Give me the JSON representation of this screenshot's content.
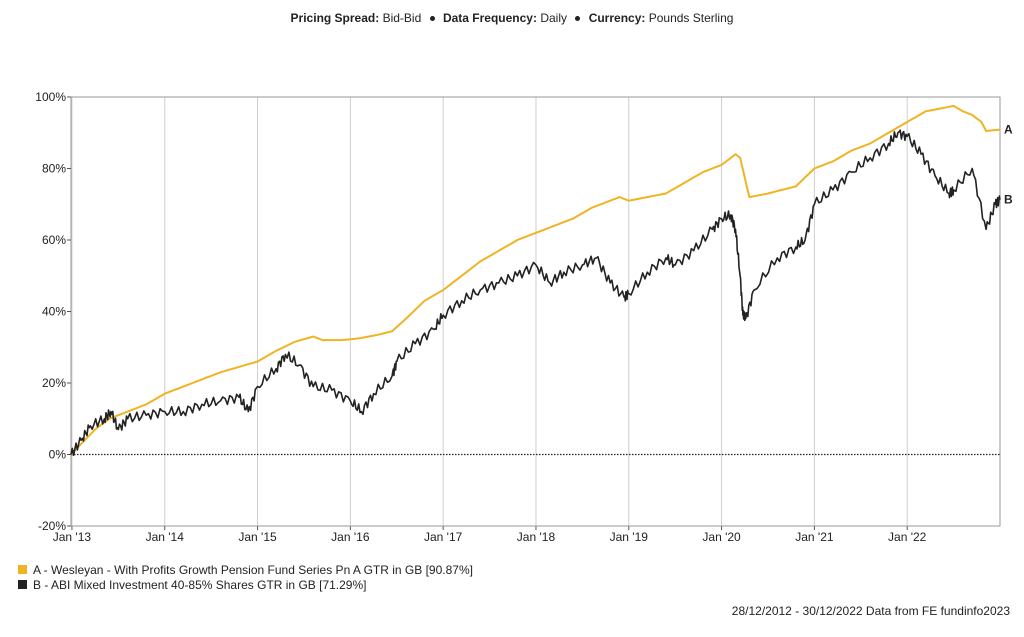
{
  "header": {
    "pricing_key": "Pricing Spread:",
    "pricing_val": "Bid-Bid",
    "freq_key": "Data Frequency:",
    "freq_val": "Daily",
    "currency_key": "Currency:",
    "currency_val": "Pounds Sterling"
  },
  "footer": "28/12/2012 - 30/12/2022 Data from FE fundinfo2023",
  "chart_data": {
    "type": "line",
    "ylim": [
      -20,
      100
    ],
    "yticks": [
      -20,
      0,
      20,
      40,
      60,
      80,
      100
    ],
    "ytick_labels": [
      "-20%",
      "0%",
      "20%",
      "40%",
      "60%",
      "80%",
      "100%"
    ],
    "xlim": [
      2012.99,
      2023.0
    ],
    "xticks": [
      2013,
      2014,
      2015,
      2016,
      2017,
      2018,
      2019,
      2020,
      2021,
      2022
    ],
    "xtick_labels": [
      "Jan '13",
      "Jan '14",
      "Jan '15",
      "Jan '16",
      "Jan '17",
      "Jan '18",
      "Jan '19",
      "Jan '20",
      "Jan '21",
      "Jan '22"
    ],
    "grid": "vertical",
    "legend_position": "bottom-left",
    "series": [
      {
        "name": "A - Wesleyan - With Profits Growth Pension Fund Series Pn A GTR in GB [90.87%]",
        "end_label": "A",
        "color": "#F0B323",
        "points": [
          [
            2012.99,
            0
          ],
          [
            2013.1,
            3
          ],
          [
            2013.25,
            7
          ],
          [
            2013.4,
            10
          ],
          [
            2013.6,
            12
          ],
          [
            2013.8,
            14
          ],
          [
            2014.0,
            17
          ],
          [
            2014.2,
            19
          ],
          [
            2014.4,
            21
          ],
          [
            2014.6,
            23
          ],
          [
            2014.8,
            24.5
          ],
          [
            2015.0,
            26
          ],
          [
            2015.2,
            29
          ],
          [
            2015.4,
            31.5
          ],
          [
            2015.6,
            33
          ],
          [
            2015.7,
            32
          ],
          [
            2015.9,
            32
          ],
          [
            2016.1,
            32.5
          ],
          [
            2016.3,
            33.5
          ],
          [
            2016.45,
            34.5
          ],
          [
            2016.6,
            38
          ],
          [
            2016.8,
            43
          ],
          [
            2017.0,
            46
          ],
          [
            2017.2,
            50
          ],
          [
            2017.4,
            54
          ],
          [
            2017.6,
            57
          ],
          [
            2017.8,
            60
          ],
          [
            2018.0,
            62
          ],
          [
            2018.2,
            64
          ],
          [
            2018.4,
            66
          ],
          [
            2018.6,
            69
          ],
          [
            2018.8,
            71
          ],
          [
            2018.9,
            72
          ],
          [
            2019.0,
            71
          ],
          [
            2019.2,
            72
          ],
          [
            2019.4,
            73
          ],
          [
            2019.6,
            76
          ],
          [
            2019.8,
            79
          ],
          [
            2020.0,
            81
          ],
          [
            2020.1,
            83
          ],
          [
            2020.15,
            84
          ],
          [
            2020.2,
            83
          ],
          [
            2020.28,
            74
          ],
          [
            2020.3,
            72
          ],
          [
            2020.5,
            73
          ],
          [
            2020.8,
            75
          ],
          [
            2021.0,
            80
          ],
          [
            2021.2,
            82
          ],
          [
            2021.4,
            85
          ],
          [
            2021.6,
            87
          ],
          [
            2021.8,
            90
          ],
          [
            2022.0,
            93
          ],
          [
            2022.2,
            96
          ],
          [
            2022.5,
            97.5
          ],
          [
            2022.6,
            96
          ],
          [
            2022.7,
            95
          ],
          [
            2022.8,
            93
          ],
          [
            2022.85,
            90.5
          ],
          [
            2023.0,
            90.87
          ]
        ]
      },
      {
        "name": "B - ABI Mixed Investment 40-85% Shares GTR in GB [71.29%]",
        "end_label": "B",
        "color": "#222222",
        "points": [
          [
            2012.99,
            0
          ],
          [
            2013.1,
            4
          ],
          [
            2013.2,
            8
          ],
          [
            2013.35,
            10
          ],
          [
            2013.42,
            12
          ],
          [
            2013.5,
            7
          ],
          [
            2013.6,
            10
          ],
          [
            2013.8,
            11
          ],
          [
            2014.0,
            12
          ],
          [
            2014.2,
            12
          ],
          [
            2014.4,
            14
          ],
          [
            2014.6,
            15
          ],
          [
            2014.8,
            16
          ],
          [
            2014.9,
            12
          ],
          [
            2015.0,
            19
          ],
          [
            2015.2,
            24
          ],
          [
            2015.3,
            28
          ],
          [
            2015.45,
            25
          ],
          [
            2015.6,
            19
          ],
          [
            2015.8,
            18
          ],
          [
            2016.0,
            15
          ],
          [
            2016.12,
            12
          ],
          [
            2016.25,
            17
          ],
          [
            2016.45,
            22
          ],
          [
            2016.5,
            26
          ],
          [
            2016.7,
            31
          ],
          [
            2016.9,
            35
          ],
          [
            2017.0,
            39
          ],
          [
            2017.2,
            43
          ],
          [
            2017.4,
            46
          ],
          [
            2017.6,
            48
          ],
          [
            2017.8,
            50
          ],
          [
            2018.0,
            53
          ],
          [
            2018.15,
            48
          ],
          [
            2018.3,
            51
          ],
          [
            2018.5,
            53
          ],
          [
            2018.65,
            55
          ],
          [
            2018.8,
            48
          ],
          [
            2018.95,
            44
          ],
          [
            2019.0,
            45
          ],
          [
            2019.2,
            51
          ],
          [
            2019.4,
            55
          ],
          [
            2019.5,
            53
          ],
          [
            2019.7,
            57
          ],
          [
            2019.9,
            63
          ],
          [
            2020.0,
            66
          ],
          [
            2020.1,
            67
          ],
          [
            2020.15,
            63
          ],
          [
            2020.2,
            50
          ],
          [
            2020.23,
            39
          ],
          [
            2020.26,
            38
          ],
          [
            2020.35,
            46
          ],
          [
            2020.6,
            55
          ],
          [
            2020.8,
            58
          ],
          [
            2020.9,
            60
          ],
          [
            2021.0,
            70
          ],
          [
            2021.2,
            74
          ],
          [
            2021.4,
            79
          ],
          [
            2021.6,
            83
          ],
          [
            2021.8,
            87
          ],
          [
            2021.9,
            90
          ],
          [
            2022.0,
            89
          ],
          [
            2022.15,
            84
          ],
          [
            2022.3,
            78
          ],
          [
            2022.45,
            73
          ],
          [
            2022.5,
            74
          ],
          [
            2022.7,
            80
          ],
          [
            2022.85,
            63
          ],
          [
            2022.95,
            70
          ],
          [
            2023.0,
            71.29
          ]
        ]
      }
    ],
    "baseline_style": "dotted",
    "baseline_value": 0
  }
}
